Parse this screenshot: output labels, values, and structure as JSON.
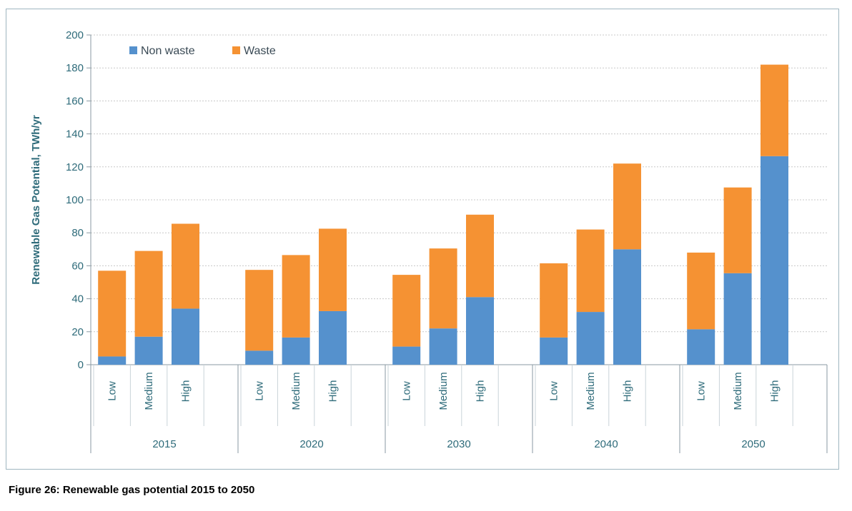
{
  "caption": "Figure 26: Renewable gas potential 2015 to 2050",
  "chart_data": {
    "type": "bar",
    "stacked": true,
    "ylabel": "Renewable Gas Potential, TWh/yr",
    "xlabel": "",
    "ylim": [
      0,
      200
    ],
    "yticks": [
      0,
      20,
      40,
      60,
      80,
      100,
      120,
      140,
      160,
      180,
      200
    ],
    "grid": true,
    "legend_position": "top-left",
    "groups": [
      "2015",
      "2020",
      "2030",
      "2040",
      "2050"
    ],
    "categories": [
      "Low",
      "Medium",
      "High"
    ],
    "series": [
      {
        "name": "Non waste",
        "color": "#5591cd",
        "values": [
          [
            5,
            17,
            34
          ],
          [
            8.5,
            16.5,
            32.5
          ],
          [
            11,
            22,
            41
          ],
          [
            16.5,
            32,
            70
          ],
          [
            21.5,
            55.5,
            126.5
          ]
        ]
      },
      {
        "name": "Waste",
        "color": "#f59233",
        "values": [
          [
            52,
            52,
            51.5
          ],
          [
            49,
            50,
            50
          ],
          [
            43.5,
            48.5,
            50
          ],
          [
            45,
            50,
            52
          ],
          [
            46.5,
            52,
            55.5
          ]
        ]
      }
    ]
  }
}
